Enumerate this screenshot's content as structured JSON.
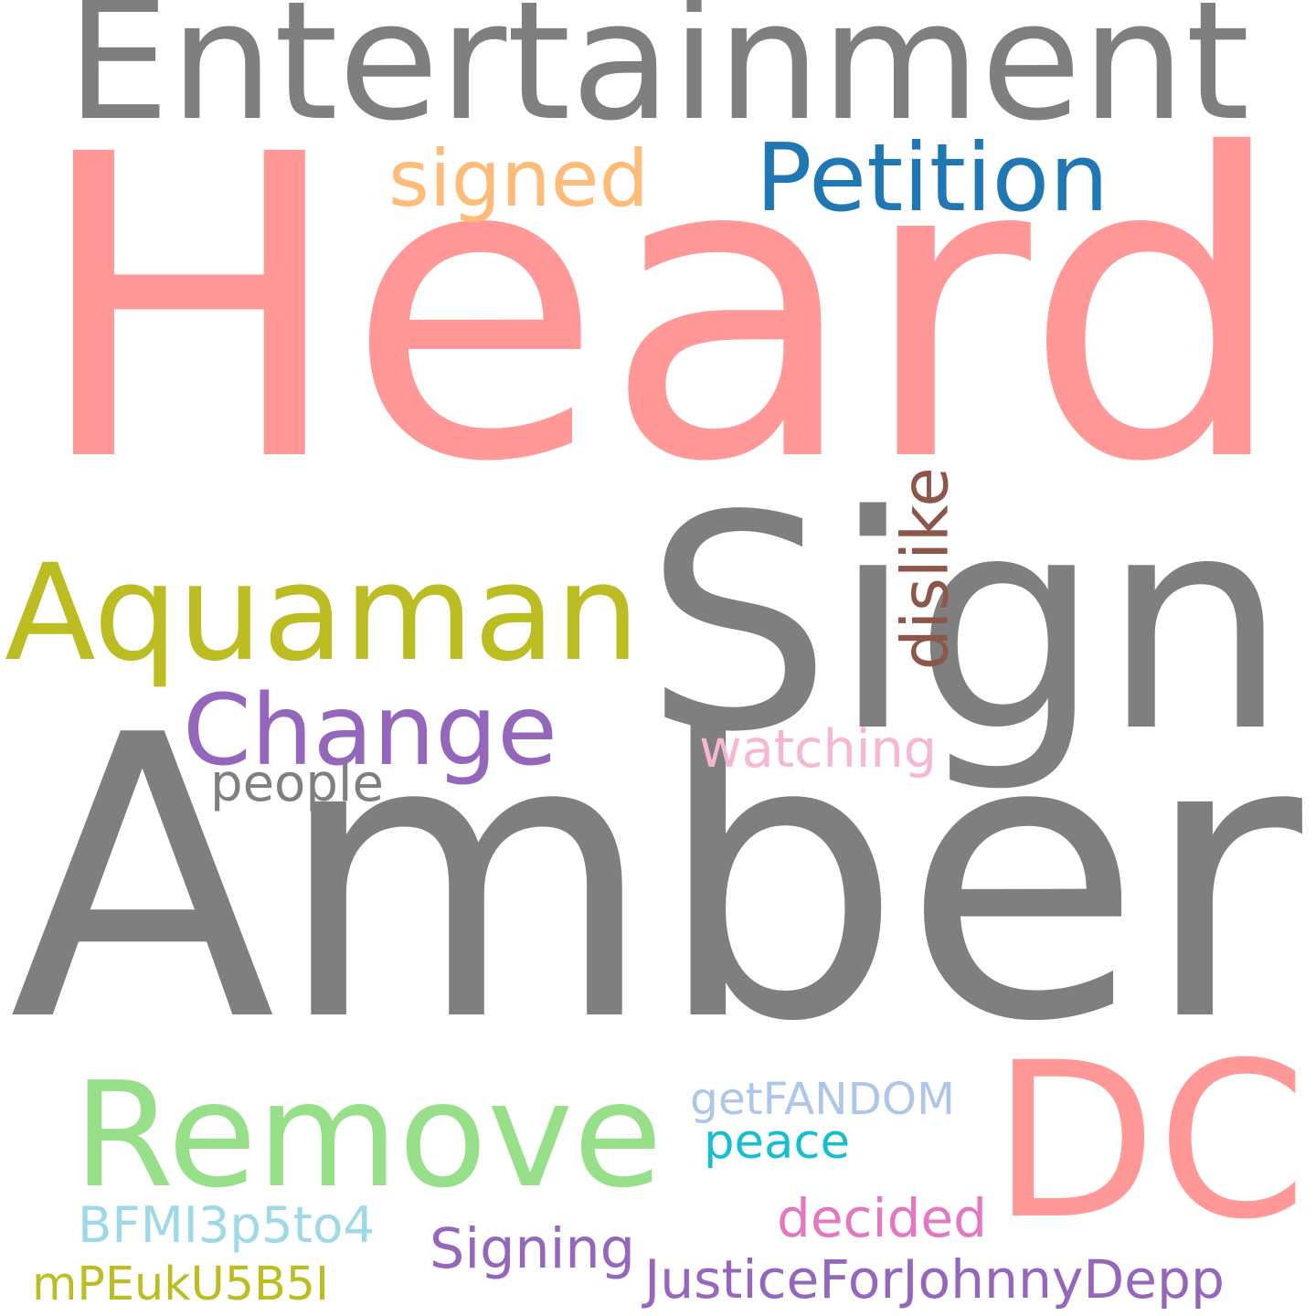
{
  "words": [
    {
      "id": "amber",
      "text": "Amber",
      "color": "#7f7f7f",
      "vertical": false
    },
    {
      "id": "heard",
      "text": "Heard",
      "color": "#ff9896",
      "vertical": false
    },
    {
      "id": "sign",
      "text": "Sign",
      "color": "#7f7f7f",
      "vertical": false
    },
    {
      "id": "entertainment",
      "text": "Entertainment",
      "color": "#7f7f7f",
      "vertical": false
    },
    {
      "id": "dc",
      "text": "DC",
      "color": "#ff9896",
      "vertical": false
    },
    {
      "id": "remove",
      "text": "Remove",
      "color": "#98df8a",
      "vertical": false
    },
    {
      "id": "aquaman",
      "text": "Aquaman",
      "color": "#bcbd22",
      "vertical": false
    },
    {
      "id": "petition",
      "text": "Petition",
      "color": "#1f77b4",
      "vertical": false
    },
    {
      "id": "change",
      "text": "Change",
      "color": "#9467bd",
      "vertical": false
    },
    {
      "id": "signed",
      "text": "signed",
      "color": "#ffbb78",
      "vertical": false
    },
    {
      "id": "dislike",
      "text": "dislike",
      "color": "#8c564b",
      "vertical": true
    },
    {
      "id": "watching",
      "text": "watching",
      "color": "#f7b6d2",
      "vertical": false
    },
    {
      "id": "people",
      "text": "people",
      "color": "#7f7f7f",
      "vertical": false
    },
    {
      "id": "getfandom",
      "text": "getFANDOM",
      "color": "#aec7e8",
      "vertical": false
    },
    {
      "id": "peace",
      "text": "peace",
      "color": "#17becf",
      "vertical": false
    },
    {
      "id": "decided",
      "text": "decided",
      "color": "#e377c2",
      "vertical": false
    },
    {
      "id": "bfmi",
      "text": "BFMI3p5to4",
      "color": "#9edae5",
      "vertical": false
    },
    {
      "id": "signing",
      "text": "Signing",
      "color": "#9467bd",
      "vertical": false
    },
    {
      "id": "justice",
      "text": "JusticeForJohnnyDepp",
      "color": "#9467bd",
      "vertical": false
    },
    {
      "id": "mpeuk",
      "text": "mPEukU5B5I",
      "color": "#bcbd22",
      "vertical": false
    }
  ]
}
